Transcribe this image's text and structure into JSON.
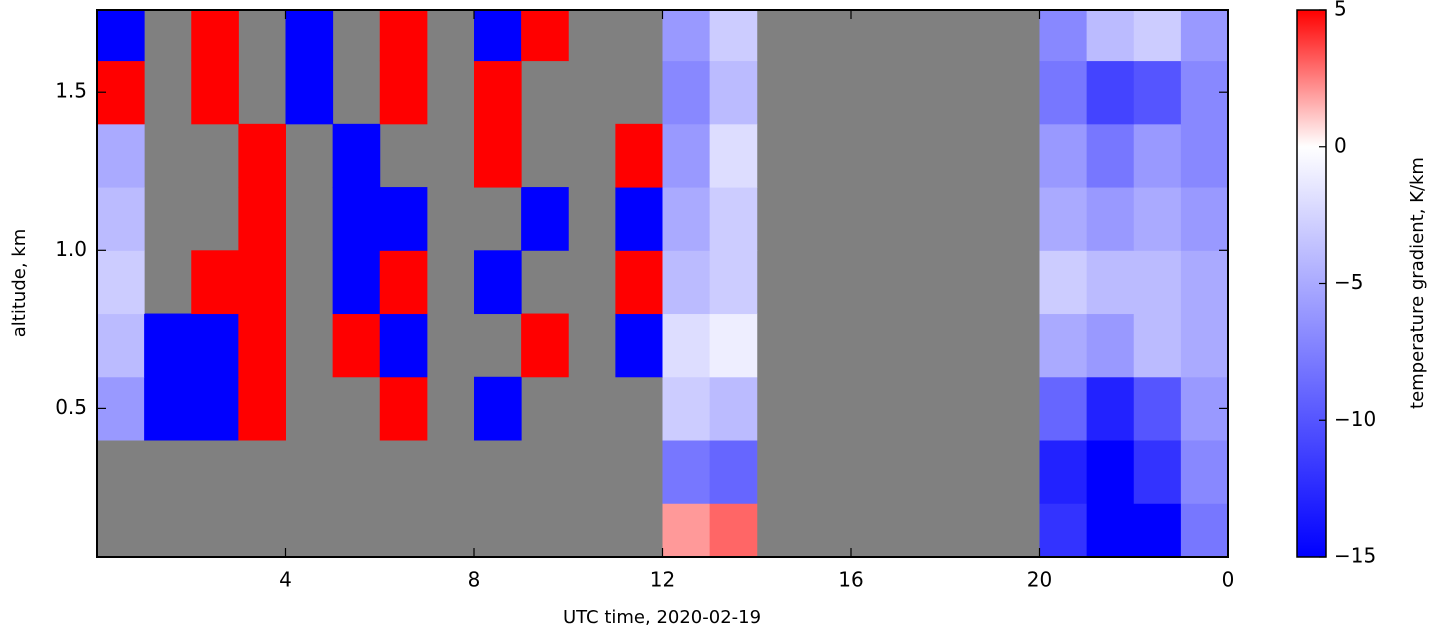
{
  "chart_data": {
    "type": "heatmap",
    "xlabel": "UTC time,  2020-02-19",
    "ylabel": "altitude, km",
    "colorbar_label": "temperature gradient, K/km",
    "xlim": [
      0,
      24
    ],
    "xticks": [
      4,
      8,
      12,
      16,
      20,
      {
        "value": 24,
        "label": "0"
      }
    ],
    "ylim": [
      0.03,
      1.76
    ],
    "yticks": [
      0.5,
      {
        "value": 1,
        "label": "1.0"
      },
      1.5
    ],
    "clim": [
      -15,
      5
    ],
    "cticks": [
      5,
      0,
      {
        "value": -5,
        "label": "−5"
      },
      {
        "value": -10,
        "label": "−10"
      },
      {
        "value": -15,
        "label": "−15"
      }
    ],
    "colorscale": [
      [
        -15,
        "#0000ff"
      ],
      [
        0,
        "#ffffff"
      ],
      [
        5,
        "#ff0000"
      ]
    ],
    "missing_color": "#808080",
    "x_edges": [
      0,
      1,
      2,
      3,
      4,
      5,
      6,
      7,
      8,
      9,
      10,
      11,
      12,
      13,
      14,
      15,
      16,
      17,
      18,
      19,
      20,
      21,
      22,
      23,
      24
    ],
    "y_edges": [
      0.03,
      0.2,
      0.4,
      0.6,
      0.8,
      1.0,
      1.2,
      1.4,
      1.6,
      1.76
    ],
    "z": [
      [
        null,
        null,
        null,
        null,
        null,
        null,
        null,
        null,
        null,
        null,
        null,
        null,
        2,
        3,
        null,
        null,
        null,
        null,
        null,
        null,
        -12,
        -15,
        -15,
        -8
      ],
      [
        null,
        null,
        null,
        null,
        null,
        null,
        null,
        null,
        null,
        null,
        null,
        null,
        -8,
        -9,
        null,
        null,
        null,
        null,
        null,
        null,
        -13,
        -15,
        -12,
        -7
      ],
      [
        -6,
        -15,
        -15,
        5,
        null,
        null,
        5,
        null,
        -15,
        null,
        null,
        null,
        -3,
        -4,
        null,
        null,
        null,
        null,
        null,
        null,
        -9,
        -13,
        -10,
        -6
      ],
      [
        -4,
        -15,
        -15,
        5,
        null,
        5,
        -15,
        null,
        null,
        5,
        null,
        -15,
        -2,
        -1,
        null,
        null,
        null,
        null,
        null,
        null,
        -5,
        -6,
        -4,
        -5
      ],
      [
        -3,
        null,
        5,
        5,
        null,
        -15,
        5,
        null,
        -15,
        null,
        null,
        5,
        -4,
        -3,
        null,
        null,
        null,
        null,
        null,
        null,
        -3,
        -4,
        -4,
        -5
      ],
      [
        -4,
        null,
        null,
        5,
        null,
        -15,
        -15,
        null,
        null,
        -15,
        null,
        -15,
        -5,
        -3,
        null,
        null,
        null,
        null,
        null,
        null,
        -5,
        -6,
        -5,
        -6
      ],
      [
        -5,
        null,
        null,
        5,
        null,
        -15,
        null,
        null,
        5,
        null,
        null,
        5,
        -6,
        -2,
        null,
        null,
        null,
        null,
        null,
        null,
        -6,
        -8,
        -6,
        -7
      ],
      [
        5,
        null,
        5,
        null,
        -15,
        null,
        5,
        null,
        5,
        null,
        null,
        null,
        -7,
        -4,
        null,
        null,
        null,
        null,
        null,
        null,
        -8,
        -11,
        -10,
        -7
      ],
      [
        -15,
        null,
        5,
        null,
        -15,
        null,
        5,
        null,
        -15,
        5,
        null,
        null,
        -6,
        -3,
        null,
        null,
        null,
        null,
        null,
        null,
        -7,
        -4,
        -3,
        -6
      ]
    ]
  }
}
